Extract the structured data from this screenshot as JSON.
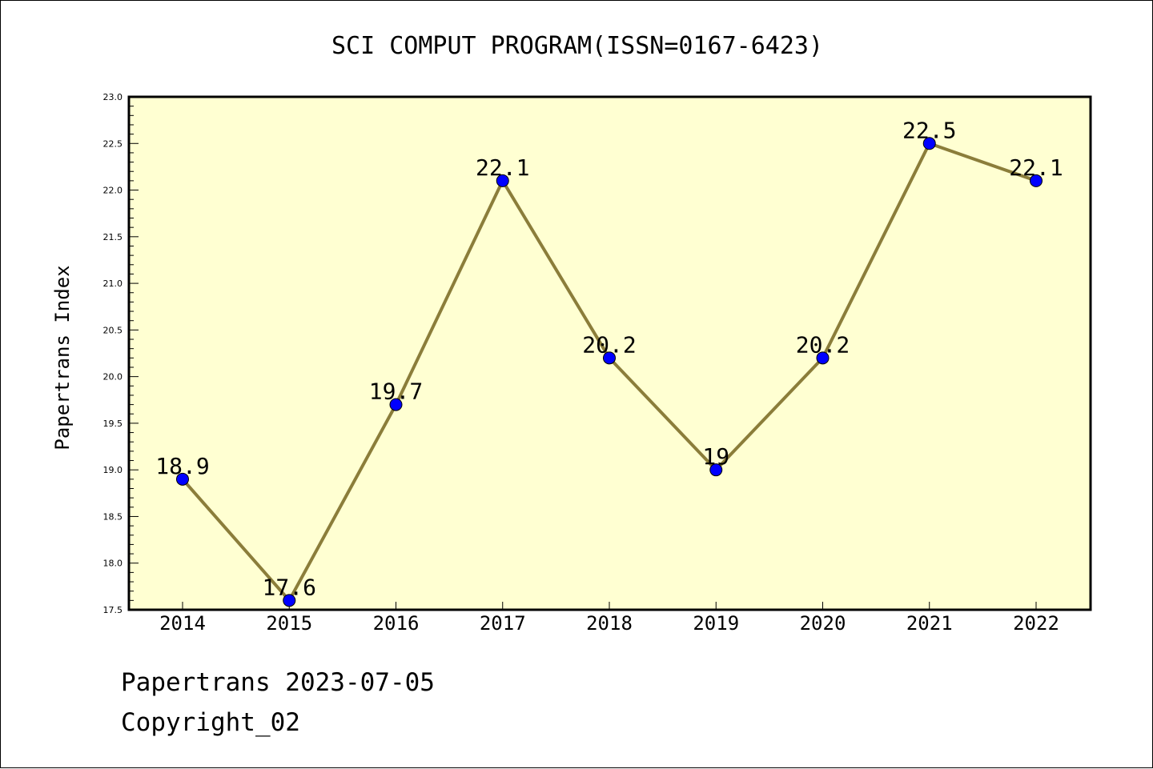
{
  "colors": {
    "plot_background": "#FFFFD2",
    "line": "#8B7D3A",
    "marker": "#0000FF",
    "axis": "#000000"
  },
  "footer": {
    "date_line": "Papertrans 2023-07-05",
    "copyright_line": "Copyright_02"
  },
  "chart_data": {
    "type": "line",
    "title": "SCI COMPUT PROGRAM(ISSN=0167-6423)",
    "xlabel": "",
    "ylabel": "Papertrans Index",
    "categories": [
      "2014",
      "2015",
      "2016",
      "2017",
      "2018",
      "2019",
      "2020",
      "2021",
      "2022"
    ],
    "series": [
      {
        "values": [
          18.9,
          17.6,
          19.7,
          22.1,
          20.2,
          19.0,
          20.2,
          22.5,
          22.1
        ],
        "data_labels": [
          "18.9",
          "17.6",
          "19.7",
          "22.1",
          "20.2",
          "19",
          "20.2",
          "22.5",
          "22.1"
        ]
      }
    ],
    "ylim": [
      17.5,
      23.0
    ],
    "y_ticks": [
      "17.5",
      "18.0",
      "18.5",
      "19.0",
      "19.5",
      "20.0",
      "20.5",
      "21.0",
      "21.5",
      "22.0",
      "22.5",
      "23.0"
    ],
    "grid": false,
    "legend": "none"
  }
}
